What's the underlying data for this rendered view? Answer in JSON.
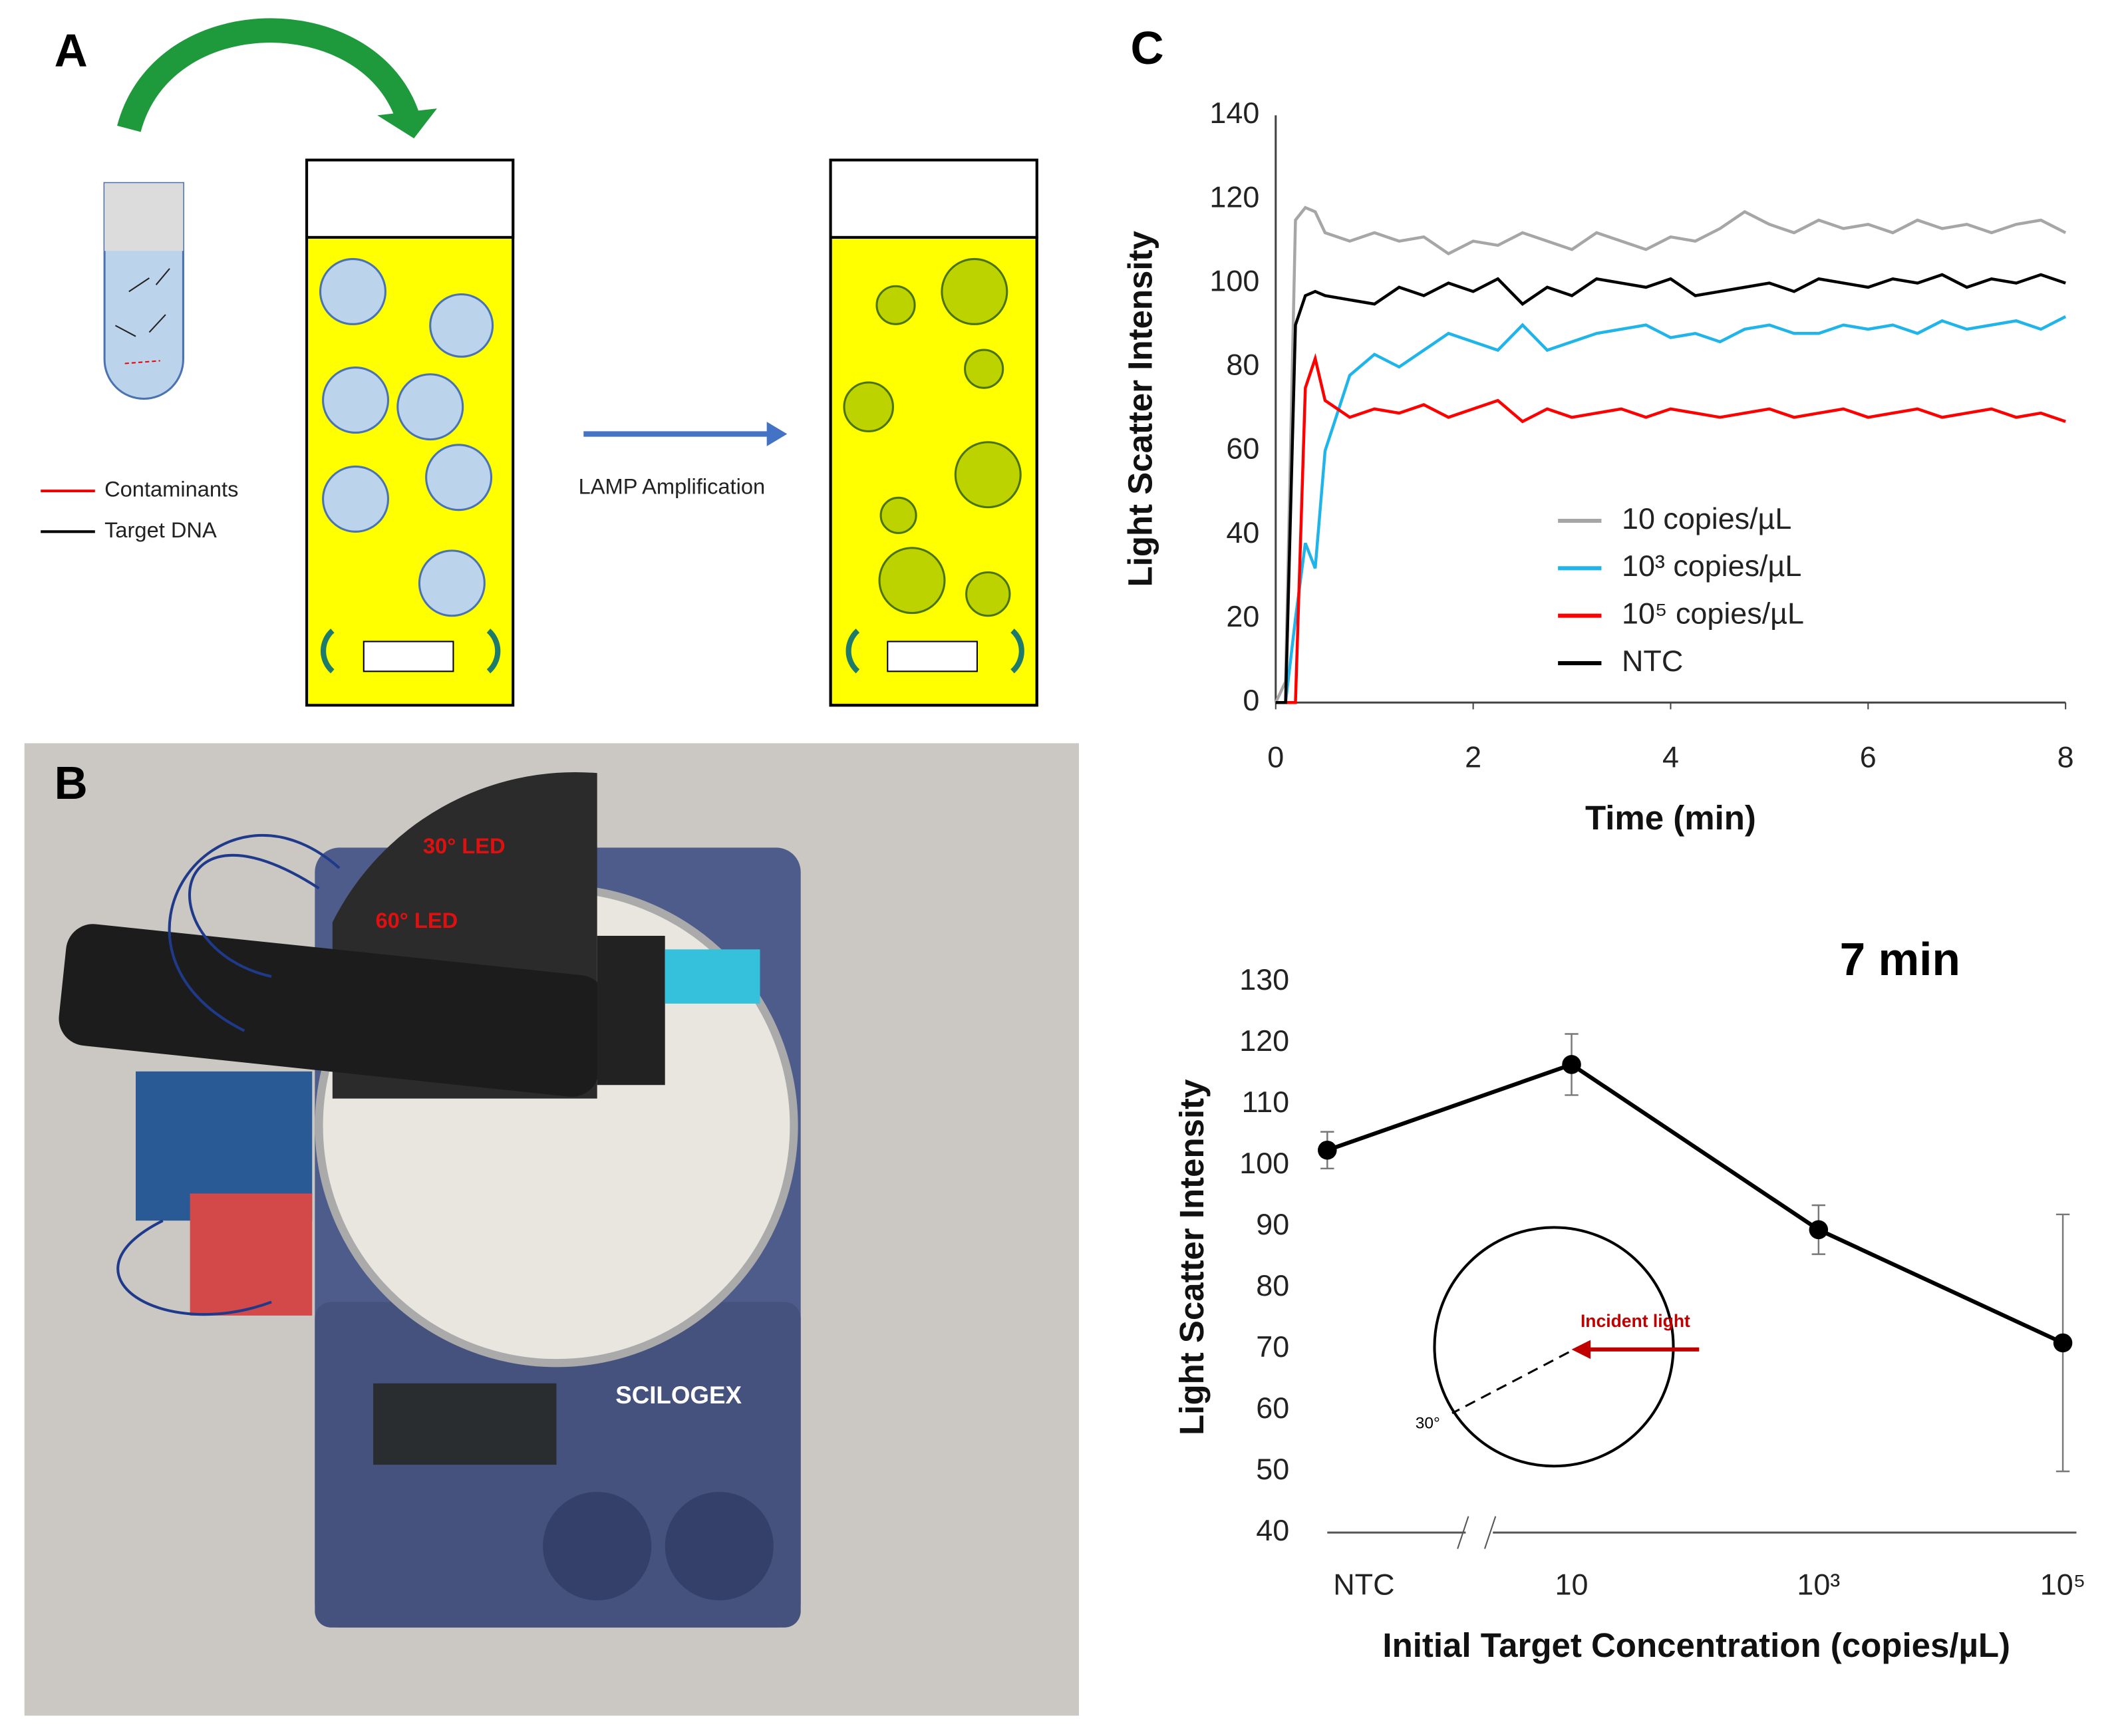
{
  "panels": {
    "A": {
      "label": "A",
      "legend": [
        "Contaminants",
        "Target DNA"
      ],
      "arrow_label": "LAMP Amplification"
    },
    "B": {
      "label": "B",
      "annotations": [
        "30° LED",
        "60° LED"
      ],
      "brand": "SCILOGEX"
    },
    "C": {
      "label": "C"
    }
  },
  "chart_data": [
    {
      "type": "line",
      "x_label": "Time (min)",
      "y_label": "Light Scatter Intensity",
      "x": [
        0,
        0.1,
        0.2,
        0.3,
        0.4,
        0.5,
        0.75,
        1,
        1.25,
        1.5,
        1.75,
        2,
        2.25,
        2.5,
        2.75,
        3,
        3.25,
        3.5,
        3.75,
        4,
        4.25,
        4.5,
        4.75,
        5,
        5.25,
        5.5,
        5.75,
        6,
        6.25,
        6.5,
        6.75,
        7,
        7.25,
        7.5,
        7.75,
        8
      ],
      "xlim": [
        0,
        8
      ],
      "xticks": [
        0,
        2,
        4,
        6,
        8
      ],
      "ylim": [
        0,
        140
      ],
      "yticks": [
        0,
        20,
        40,
        60,
        80,
        100,
        120,
        140
      ],
      "grid": false,
      "series": [
        {
          "name": "10 copies/µL",
          "color": "#a6a6a6",
          "values": [
            0,
            5,
            115,
            118,
            117,
            112,
            110,
            112,
            110,
            111,
            107,
            110,
            109,
            112,
            110,
            108,
            112,
            110,
            108,
            111,
            110,
            113,
            117,
            114,
            112,
            115,
            113,
            114,
            112,
            115,
            113,
            114,
            112,
            114,
            115,
            112
          ]
        },
        {
          "name": "10³ copies/µL",
          "color": "#1fb4ea",
          "values": [
            0,
            0,
            20,
            38,
            32,
            60,
            78,
            83,
            80,
            84,
            88,
            86,
            84,
            90,
            84,
            86,
            88,
            89,
            90,
            87,
            88,
            86,
            89,
            90,
            88,
            88,
            90,
            89,
            90,
            88,
            91,
            89,
            90,
            91,
            89,
            92
          ]
        },
        {
          "name": "10⁵ copies/µL",
          "color": "#ff0000",
          "values": [
            0,
            0,
            0,
            75,
            82,
            72,
            68,
            70,
            69,
            71,
            68,
            70,
            72,
            67,
            70,
            68,
            69,
            70,
            68,
            70,
            69,
            68,
            69,
            70,
            68,
            69,
            70,
            68,
            69,
            70,
            68,
            69,
            70,
            68,
            69,
            67
          ]
        },
        {
          "name": "NTC",
          "color": "#000000",
          "values": [
            0,
            0,
            90,
            97,
            98,
            97,
            96,
            95,
            99,
            97,
            100,
            98,
            101,
            95,
            99,
            97,
            101,
            100,
            99,
            101,
            97,
            98,
            99,
            100,
            98,
            101,
            100,
            99,
            101,
            100,
            102,
            99,
            101,
            100,
            102,
            100
          ]
        }
      ]
    },
    {
      "type": "line",
      "title": "7 min",
      "x_label": "Initial Target Concentration (copies/µL)",
      "y_label": "Light Scatter Intensity",
      "categories": [
        "NTC",
        "10",
        "10³",
        "10⁵"
      ],
      "values": [
        102.5,
        116.5,
        89.5,
        71
      ],
      "errors": [
        3,
        5,
        4,
        21
      ],
      "color": "#000000",
      "ylim": [
        40,
        130
      ],
      "yticks": [
        40,
        50,
        60,
        70,
        80,
        90,
        100,
        110,
        120,
        130
      ],
      "grid": false,
      "annotations": [
        "Incident light",
        "30°"
      ]
    }
  ]
}
